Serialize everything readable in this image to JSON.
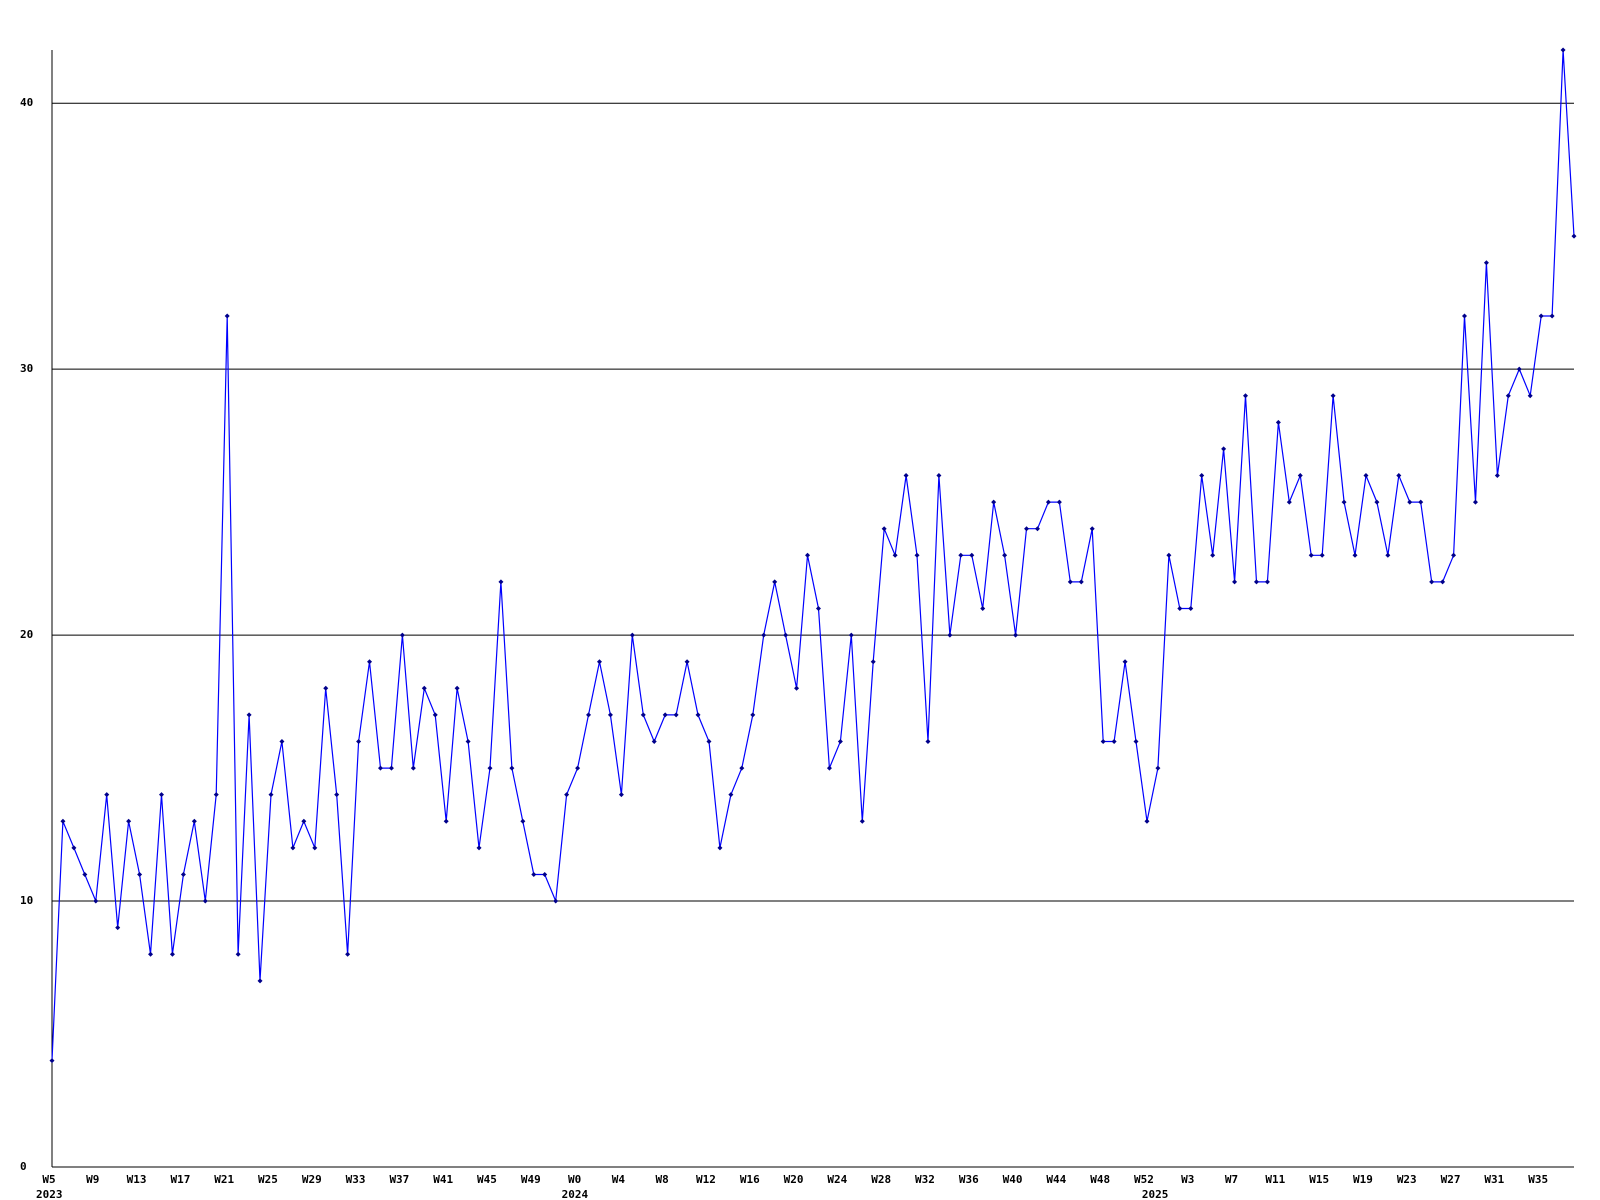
{
  "chart_data": {
    "type": "line",
    "categories": [
      "W5",
      null,
      null,
      null,
      "W9",
      null,
      null,
      null,
      "W13",
      null,
      null,
      null,
      "W17",
      null,
      null,
      null,
      "W21",
      null,
      null,
      null,
      "W25",
      null,
      null,
      null,
      "W29",
      null,
      null,
      null,
      "W33",
      null,
      null,
      null,
      "W37",
      null,
      null,
      null,
      "W41",
      null,
      null,
      null,
      "W45",
      null,
      null,
      null,
      "W49",
      null,
      null,
      null,
      "W0",
      null,
      null,
      null,
      "W4",
      null,
      null,
      null,
      "W8",
      null,
      null,
      null,
      "W12",
      null,
      null,
      null,
      "W16",
      null,
      null,
      null,
      "W20",
      null,
      null,
      null,
      "W24",
      null,
      null,
      null,
      "W28",
      null,
      null,
      null,
      "W32",
      null,
      null,
      null,
      "W36",
      null,
      null,
      null,
      "W40",
      null,
      null,
      null,
      "W44",
      null,
      null,
      null,
      "W48",
      null,
      null,
      null,
      "W52",
      null,
      null,
      null,
      "W3",
      null,
      null,
      null,
      "W7",
      null,
      null,
      null,
      "W11",
      null,
      null,
      null,
      "W15",
      null,
      null,
      null,
      "W19",
      null,
      null,
      null,
      "W23",
      null,
      null,
      null,
      "W27",
      null,
      null,
      null,
      "W31",
      null,
      null,
      null,
      "W35",
      null,
      null,
      null
    ],
    "years": [
      "2023",
      null,
      null,
      null,
      null,
      null,
      null,
      null,
      null,
      null,
      null,
      null,
      null,
      null,
      null,
      null,
      null,
      null,
      null,
      null,
      null,
      null,
      null,
      null,
      null,
      null,
      null,
      null,
      null,
      null,
      null,
      null,
      null,
      null,
      null,
      null,
      null,
      null,
      null,
      null,
      null,
      null,
      null,
      null,
      null,
      null,
      null,
      null,
      "2024",
      null,
      null,
      null,
      null,
      null,
      null,
      null,
      null,
      null,
      null,
      null,
      null,
      null,
      null,
      null,
      null,
      null,
      null,
      null,
      null,
      null,
      null,
      null,
      null,
      null,
      null,
      null,
      null,
      null,
      null,
      null,
      null,
      null,
      null,
      null,
      null,
      null,
      null,
      null,
      null,
      null,
      null,
      null,
      null,
      null,
      null,
      null,
      null,
      null,
      null,
      null,
      null,
      "2025",
      null,
      null,
      null,
      null,
      null,
      null,
      null,
      null,
      null,
      null,
      null,
      null,
      null,
      null,
      null,
      null,
      null,
      null,
      null,
      null,
      null,
      null,
      null,
      null,
      null,
      null,
      null,
      null,
      null,
      null,
      null,
      null,
      null,
      null,
      null,
      null,
      null,
      null
    ],
    "values": [
      4,
      13,
      12,
      11,
      10,
      14,
      9,
      13,
      11,
      8,
      14,
      8,
      11,
      13,
      10,
      14,
      32,
      8,
      17,
      7,
      14,
      16,
      12,
      13,
      12,
      18,
      14,
      8,
      16,
      19,
      15,
      15,
      20,
      15,
      18,
      17,
      13,
      18,
      16,
      12,
      15,
      22,
      15,
      13,
      11,
      11,
      10,
      14,
      15,
      17,
      19,
      17,
      14,
      20,
      17,
      16,
      17,
      17,
      19,
      17,
      16,
      12,
      14,
      15,
      17,
      20,
      22,
      20,
      18,
      23,
      21,
      15,
      16,
      20,
      13,
      19,
      24,
      23,
      26,
      23,
      16,
      26,
      20,
      23,
      23,
      21,
      25,
      23,
      20,
      24,
      24,
      25,
      25,
      22,
      22,
      24,
      16,
      16,
      19,
      16,
      13,
      15,
      23,
      21,
      21,
      26,
      23,
      27,
      22,
      29,
      22,
      22,
      28,
      25,
      26,
      23,
      23,
      29,
      25,
      23,
      26,
      25,
      23,
      26,
      25,
      25,
      22,
      22,
      23,
      32,
      25,
      34,
      26,
      29,
      30,
      29,
      32,
      32,
      42,
      35
    ],
    "color": "#0000ff",
    "marker_color": "#00008b",
    "ylim": [
      0,
      42
    ],
    "yticks": [
      0,
      10,
      20,
      30,
      40
    ],
    "grid": true
  }
}
